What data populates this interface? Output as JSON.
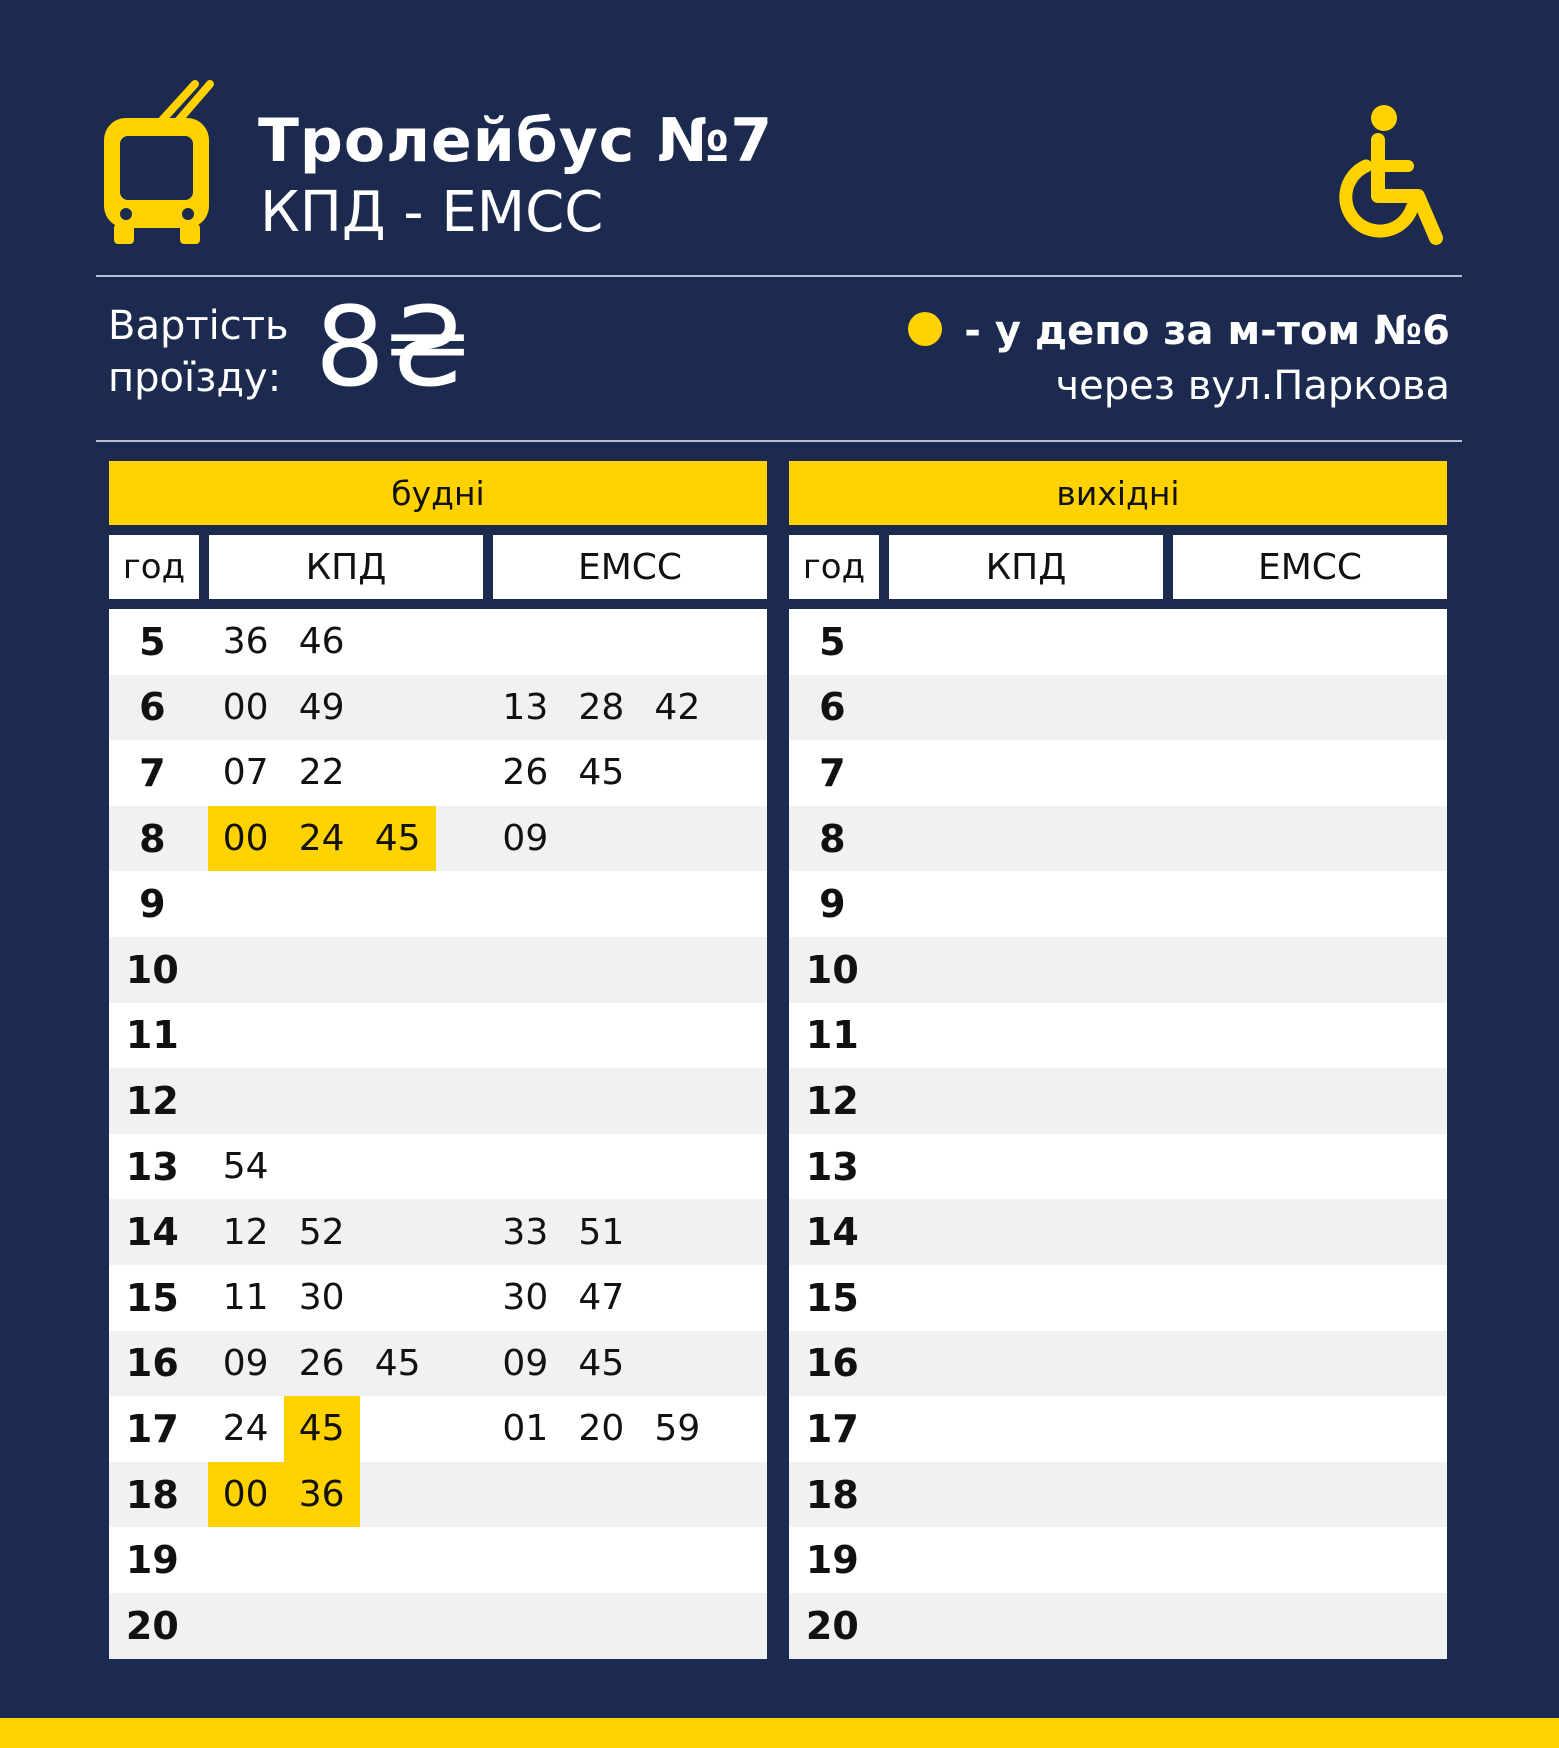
{
  "header": {
    "title": "Тролейбус №7",
    "route": "КПД - ЕМСС",
    "fare_label_line1": "Вартість",
    "fare_label_line2": "проїзду:",
    "fare_value": "8₴",
    "note_line1": "- у депо за м-том №6",
    "note_line2": "через вул.Паркова",
    "icons": [
      "trolleybus-icon",
      "wheelchair-icon",
      "depot-dot-icon"
    ]
  },
  "colors": {
    "background": "#1b2a4e",
    "accent": "#ffd200"
  },
  "columns": {
    "hour": "год",
    "a": "КПД",
    "b": "ЕМСС"
  },
  "weekdays": {
    "title": "будні",
    "rows": [
      {
        "hour": "5",
        "a": [
          {
            "m": "36"
          },
          {
            "m": "46"
          }
        ],
        "b": []
      },
      {
        "hour": "6",
        "a": [
          {
            "m": "00"
          },
          {
            "m": "49"
          }
        ],
        "b": [
          {
            "m": "13"
          },
          {
            "m": "28"
          },
          {
            "m": "42"
          }
        ]
      },
      {
        "hour": "7",
        "a": [
          {
            "m": "07"
          },
          {
            "m": "22"
          }
        ],
        "b": [
          {
            "m": "26"
          },
          {
            "m": "45"
          }
        ]
      },
      {
        "hour": "8",
        "a": [
          {
            "m": "00",
            "depot": true
          },
          {
            "m": "24",
            "depot": true
          },
          {
            "m": "45",
            "depot": true
          }
        ],
        "b": [
          {
            "m": "09"
          }
        ]
      },
      {
        "hour": "9",
        "a": [],
        "b": []
      },
      {
        "hour": "10",
        "a": [],
        "b": []
      },
      {
        "hour": "11",
        "a": [],
        "b": []
      },
      {
        "hour": "12",
        "a": [],
        "b": []
      },
      {
        "hour": "13",
        "a": [
          {
            "m": "54"
          }
        ],
        "b": []
      },
      {
        "hour": "14",
        "a": [
          {
            "m": "12"
          },
          {
            "m": "52"
          }
        ],
        "b": [
          {
            "m": "33"
          },
          {
            "m": "51"
          }
        ]
      },
      {
        "hour": "15",
        "a": [
          {
            "m": "11"
          },
          {
            "m": "30"
          }
        ],
        "b": [
          {
            "m": "30"
          },
          {
            "m": "47"
          }
        ]
      },
      {
        "hour": "16",
        "a": [
          {
            "m": "09"
          },
          {
            "m": "26"
          },
          {
            "m": "45"
          }
        ],
        "b": [
          {
            "m": "09"
          },
          {
            "m": "45"
          }
        ]
      },
      {
        "hour": "17",
        "a": [
          {
            "m": "24"
          },
          {
            "m": "45",
            "depot": true
          }
        ],
        "b": [
          {
            "m": "01"
          },
          {
            "m": "20"
          },
          {
            "m": "59"
          }
        ]
      },
      {
        "hour": "18",
        "a": [
          {
            "m": "00",
            "depot": true
          },
          {
            "m": "36",
            "depot": true
          }
        ],
        "b": []
      },
      {
        "hour": "19",
        "a": [],
        "b": []
      },
      {
        "hour": "20",
        "a": [],
        "b": []
      }
    ]
  },
  "weekends": {
    "title": "вихідні",
    "rows": [
      {
        "hour": "5",
        "a": [],
        "b": []
      },
      {
        "hour": "6",
        "a": [],
        "b": []
      },
      {
        "hour": "7",
        "a": [],
        "b": []
      },
      {
        "hour": "8",
        "a": [],
        "b": []
      },
      {
        "hour": "9",
        "a": [],
        "b": []
      },
      {
        "hour": "10",
        "a": [],
        "b": []
      },
      {
        "hour": "11",
        "a": [],
        "b": []
      },
      {
        "hour": "12",
        "a": [],
        "b": []
      },
      {
        "hour": "13",
        "a": [],
        "b": []
      },
      {
        "hour": "14",
        "a": [],
        "b": []
      },
      {
        "hour": "15",
        "a": [],
        "b": []
      },
      {
        "hour": "16",
        "a": [],
        "b": []
      },
      {
        "hour": "17",
        "a": [],
        "b": []
      },
      {
        "hour": "18",
        "a": [],
        "b": []
      },
      {
        "hour": "19",
        "a": [],
        "b": []
      },
      {
        "hour": "20",
        "a": [],
        "b": []
      }
    ]
  }
}
